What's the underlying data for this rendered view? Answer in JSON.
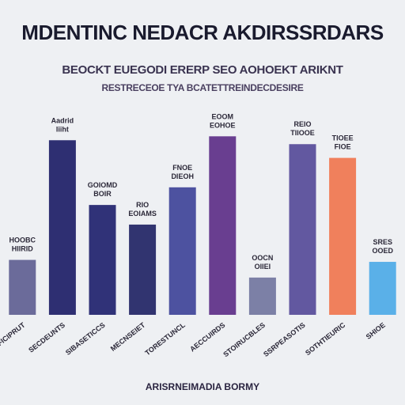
{
  "header": {
    "title": "MDENTINC NEDACR AKDIRSSRDARS",
    "subtitle_line1": "BEOCKT EUEGODI ERERP SEO AOHOEKT ARIKNT",
    "subtitle_line2": "RESTRECEOE TYA BCATETTREINDECDESIRE"
  },
  "chart_data": {
    "type": "bar",
    "title": "MDENTINC NEDACR AKDIRSSRDARS",
    "xlabel": "ARISRNEIMADIA BORMY",
    "ylabel": "",
    "ylim": [
      0,
      100
    ],
    "grid": false,
    "legend": "none",
    "categories": [
      "DFFICIPRUT",
      "SECDEUNTS",
      "SIBASETICCS",
      "MECNSEIET",
      "TORESTUNCL",
      "AECCUIRDS",
      "STOIRUCBLES",
      "SSRPEASOTIS",
      "SOTHTIEURIC",
      "SHIOE"
    ],
    "values": [
      28,
      89,
      56,
      46,
      65,
      91,
      19,
      87,
      80,
      27
    ],
    "data_labels": [
      "HOOBC HIIRID",
      "Aadrid Iiiht",
      "GOIOMD BOIR",
      "RIO EOIAMS",
      "FNOE DIEOH",
      "EOOM EOHOE",
      "OOCN OIIEI",
      "REIO TIIOOE",
      "TIOEE FIOE",
      "SRES OOED"
    ],
    "colors": [
      "#6b6b9a",
      "#2e2f72",
      "#303278",
      "#313470",
      "#4d52a0",
      "#693e90",
      "#7c80a6",
      "#6258a0",
      "#f0805c",
      "#5ab0e8"
    ]
  }
}
